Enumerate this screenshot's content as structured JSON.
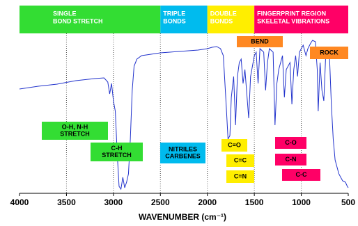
{
  "chart_data": {
    "type": "line",
    "xlabel": "WAVENUMBER (cm⁻¹)",
    "xlim": [
      4000,
      500
    ],
    "xticks": [
      4000,
      3500,
      3000,
      2500,
      2000,
      1500,
      1000,
      500
    ],
    "ylim": [
      0,
      270
    ],
    "grid": true,
    "regions": [
      {
        "lines": [
          "SINGLE",
          "BOND STRETCH"
        ],
        "color": "#33dd33"
      },
      {
        "lines": [
          "TRIPLE",
          "BONDS"
        ],
        "color": "#00bbee"
      },
      {
        "lines": [
          "DOUBLE",
          "BONDS"
        ],
        "color": "#ffee00"
      },
      {
        "lines": [
          "FINGERPRINT REGION",
          "SKELETAL VIBRATIONS"
        ],
        "color": "#ff0066"
      }
    ],
    "annotations": [
      {
        "lines": [
          "BEND"
        ],
        "color": "#ff8822"
      },
      {
        "lines": [
          "ROCK"
        ],
        "color": "#ff8822"
      },
      {
        "lines": [
          "O-H, N-H",
          "STRETCH"
        ],
        "color": "#33dd33"
      },
      {
        "lines": [
          "C-H",
          "STRETCH"
        ],
        "color": "#33dd33"
      },
      {
        "lines": [
          "NITRILES",
          "CARBENES"
        ],
        "color": "#00bbee"
      },
      {
        "lines": [
          "C=O"
        ],
        "color": "#ffee00"
      },
      {
        "lines": [
          "C=C"
        ],
        "color": "#ffee00"
      },
      {
        "lines": [
          "C=N"
        ],
        "color": "#ffee00"
      },
      {
        "lines": [
          "C-O"
        ],
        "color": "#ff0066"
      },
      {
        "lines": [
          "C-N"
        ],
        "color": "#ff0066"
      },
      {
        "lines": [
          "C-C"
        ],
        "color": "#ff0066"
      }
    ],
    "series": [
      {
        "color": "#2233cc",
        "x": [
          4000,
          3800,
          3600,
          3400,
          3200,
          3100,
          3060,
          3040,
          3020,
          3000,
          2980,
          2960,
          2940,
          2920,
          2900,
          2880,
          2860,
          2840,
          2820,
          2800,
          2780,
          2750,
          2700,
          2600,
          2500,
          2400,
          2300,
          2200,
          2100,
          2000,
          1950,
          1900,
          1860,
          1830,
          1800,
          1780,
          1760,
          1745,
          1720,
          1700,
          1680,
          1660,
          1640,
          1620,
          1600,
          1560,
          1540,
          1500,
          1480,
          1460,
          1440,
          1400,
          1380,
          1360,
          1340,
          1300,
          1280,
          1260,
          1240,
          1200,
          1180,
          1160,
          1120,
          1100,
          1080,
          1060,
          1040,
          1020,
          1000,
          980,
          950,
          930,
          900,
          880,
          850,
          830,
          820,
          800,
          780,
          760,
          740,
          720,
          700,
          680,
          660,
          640,
          600,
          560,
          530,
          510,
          500
        ],
        "values": [
          150,
          154,
          157,
          162,
          165,
          166,
          160,
          143,
          158,
          133,
          118,
          58,
          10,
          6,
          23,
          8,
          16,
          28,
          78,
          148,
          183,
          193,
          198,
          200,
          202,
          203,
          204,
          205,
          206,
          208,
          210,
          211,
          208,
          198,
          128,
          78,
          83,
          138,
          168,
          98,
          168,
          188,
          193,
          158,
          178,
          108,
          168,
          198,
          203,
          158,
          208,
          203,
          148,
          188,
          208,
          203,
          98,
          158,
          178,
          198,
          138,
          178,
          188,
          128,
          178,
          198,
          168,
          203,
          208,
          213,
          198,
          208,
          216,
          220,
          218,
          178,
          118,
          188,
          148,
          133,
          198,
          208,
          198,
          128,
          78,
          48,
          28,
          18,
          16,
          10,
          8
        ]
      }
    ]
  }
}
